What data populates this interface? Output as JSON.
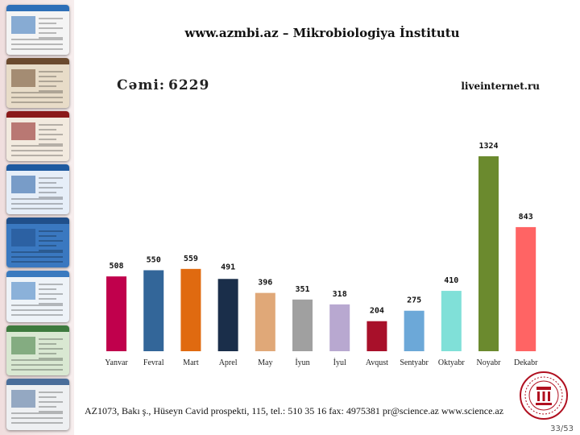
{
  "title": "www.azmbi.az – Mikrobiologiya İnstitutu",
  "total": {
    "label": "Cəmi:",
    "value": "6229"
  },
  "source": "liveinternet.ru",
  "footer": "AZ1073, Bakı ş., Hüseyn Cavid prospekti, 115, tel.: 510 35 16 fax: 4975381 pr@science.az www.science.az",
  "page_number": "33/53",
  "chart_data": {
    "type": "bar",
    "categories": [
      "Yanvar",
      "Fevral",
      "Mart",
      "Aprel",
      "May",
      "İyun",
      "İyul",
      "Avqust",
      "Sentyabr",
      "Oktyabr",
      "Noyabr",
      "Dekabr"
    ],
    "values": [
      508,
      550,
      559,
      491,
      396,
      351,
      318,
      204,
      275,
      410,
      1324,
      843
    ],
    "colors": [
      "#c0004c",
      "#336699",
      "#e06a10",
      "#1a2e4a",
      "#e0a878",
      "#a0a0a0",
      "#b8a8d0",
      "#a8102a",
      "#6ca8d8",
      "#80e0d8",
      "#6b8a2e",
      "#ff6464"
    ],
    "title": "",
    "xlabel": "",
    "ylabel": "",
    "grid": false,
    "legend": "none"
  },
  "thumbnails": [
    {
      "name": "thumb-1",
      "bar": "#2e6fb8",
      "body": "#f4f4f4"
    },
    {
      "name": "thumb-2",
      "bar": "#6b4a2e",
      "body": "#e8dcc8"
    },
    {
      "name": "thumb-3",
      "bar": "#8a1a1a",
      "body": "#f2eadf"
    },
    {
      "name": "thumb-4",
      "bar": "#1e5aa0",
      "body": "#e6eef8"
    },
    {
      "name": "thumb-5",
      "bar": "#204f8a",
      "body": "#3a78c0"
    },
    {
      "name": "thumb-6",
      "bar": "#3a7abf",
      "body": "#eef3f8"
    },
    {
      "name": "thumb-7",
      "bar": "#3e7a3e",
      "body": "#d9e8d2"
    },
    {
      "name": "thumb-8",
      "bar": "#4a6e9a",
      "body": "#eef0f2"
    },
    {
      "name": "thumb-9",
      "bar": "#c0c0c0",
      "body": "#f0ece6"
    },
    {
      "name": "thumb-10",
      "bar": "#2e8a3a",
      "body": "#e4f0e0"
    }
  ]
}
